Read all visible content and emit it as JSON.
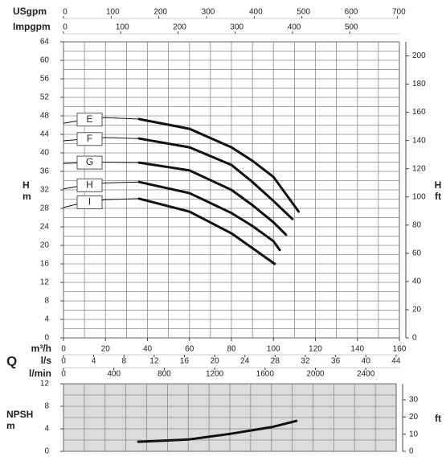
{
  "chart_data": [
    {
      "type": "line",
      "q_label": "Q",
      "x_label": "m³/h",
      "xlim": [
        0,
        160
      ],
      "xticks": [
        0,
        20,
        40,
        60,
        80,
        100,
        120,
        140,
        160
      ],
      "x_grid": [
        0,
        10,
        20,
        30,
        40,
        50,
        60,
        70,
        80,
        90,
        100,
        110,
        120,
        130,
        140,
        150,
        160
      ],
      "ylim": [
        0,
        64
      ],
      "yticks": [
        0,
        4,
        8,
        12,
        16,
        20,
        24,
        28,
        32,
        36,
        40,
        44,
        48,
        52,
        56,
        60,
        64
      ],
      "y_grid": [
        0,
        2,
        4,
        6,
        8,
        10,
        12,
        14,
        16,
        18,
        20,
        22,
        24,
        26,
        28,
        30,
        32,
        34,
        36,
        38,
        40,
        42,
        44,
        46,
        48,
        50,
        52,
        54,
        56,
        58,
        60,
        62,
        64
      ],
      "y_label": [
        "H",
        "m"
      ],
      "y2lim": [
        0,
        209.97
      ],
      "y2ticks": [
        0,
        20,
        40,
        60,
        80,
        100,
        120,
        140,
        160,
        180,
        200
      ],
      "y2_label": [
        "H",
        "ft"
      ],
      "extra_x_axes": [
        {
          "label": "USgpm",
          "position": "top",
          "lim": [
            0,
            704.5
          ],
          "ticks": [
            0,
            100,
            200,
            300,
            400,
            500,
            600,
            700
          ]
        },
        {
          "label": "Impgpm",
          "position": "top",
          "lim": [
            0,
            586.6
          ],
          "ticks": [
            0,
            100,
            200,
            300,
            400,
            500
          ]
        },
        {
          "label": "l/s",
          "position": "bottom",
          "lim": [
            0,
            44.44
          ],
          "ticks": [
            0,
            4,
            8,
            12,
            16,
            20,
            24,
            28,
            32,
            36,
            40,
            44
          ]
        },
        {
          "label": "l/min",
          "position": "bottom",
          "lim": [
            0,
            2666.7
          ],
          "ticks": [
            0,
            400,
            800,
            1200,
            1600,
            2000,
            2400
          ]
        }
      ],
      "thick_from": 36,
      "series": [
        {
          "name": "E",
          "color": "#111111",
          "x": [
            0,
            10,
            20,
            36,
            60,
            80,
            90,
            100,
            112
          ],
          "values": [
            46.4,
            47.2,
            47.6,
            47.3,
            45.2,
            41.2,
            38.3,
            34.8,
            27.3
          ]
        },
        {
          "name": "F",
          "color": "#111111",
          "x": [
            0,
            10,
            20,
            36,
            60,
            80,
            90,
            100,
            109
          ],
          "values": [
            42.6,
            43.0,
            43.3,
            43.1,
            41.2,
            37.4,
            33.7,
            29.6,
            25.7
          ]
        },
        {
          "name": "G",
          "color": "#111111",
          "x": [
            0,
            10,
            20,
            36,
            60,
            80,
            90,
            100,
            106
          ],
          "values": [
            37.7,
            37.9,
            38.0,
            37.9,
            36.2,
            32.0,
            28.7,
            25.0,
            22.3
          ]
        },
        {
          "name": "H",
          "color": "#111111",
          "x": [
            0,
            10,
            20,
            36,
            60,
            80,
            90,
            100,
            103
          ],
          "values": [
            32.2,
            33.0,
            33.5,
            33.7,
            31.3,
            27.0,
            24.2,
            20.9,
            19.0
          ]
        },
        {
          "name": "I",
          "color": "#111111",
          "x": [
            0,
            10,
            20,
            36,
            60,
            80,
            90,
            100.6
          ],
          "values": [
            28.2,
            29.3,
            29.9,
            30.1,
            27.3,
            22.6,
            19.4,
            16.0
          ]
        }
      ]
    },
    {
      "type": "line",
      "background": "#dcdcdc",
      "xlim": [
        0,
        160
      ],
      "x_grid": [
        0,
        10,
        20,
        30,
        40,
        50,
        60,
        70,
        80,
        90,
        100,
        110,
        120,
        130,
        140,
        150,
        160
      ],
      "ylim": [
        0,
        12
      ],
      "yticks": [
        0,
        4,
        8,
        12
      ],
      "y_grid": [
        0,
        2,
        4,
        6,
        8,
        10,
        12
      ],
      "y_label": [
        "NPSH",
        "m"
      ],
      "y2lim": [
        0,
        39.37
      ],
      "y2ticks": [
        0,
        10,
        20,
        30
      ],
      "y2_label": [
        "ft"
      ],
      "series": [
        {
          "color": "#111111",
          "x": [
            36,
            60,
            80,
            100,
            112
          ],
          "values": [
            1.7,
            2.1,
            3.1,
            4.3,
            5.4
          ]
        }
      ]
    }
  ]
}
